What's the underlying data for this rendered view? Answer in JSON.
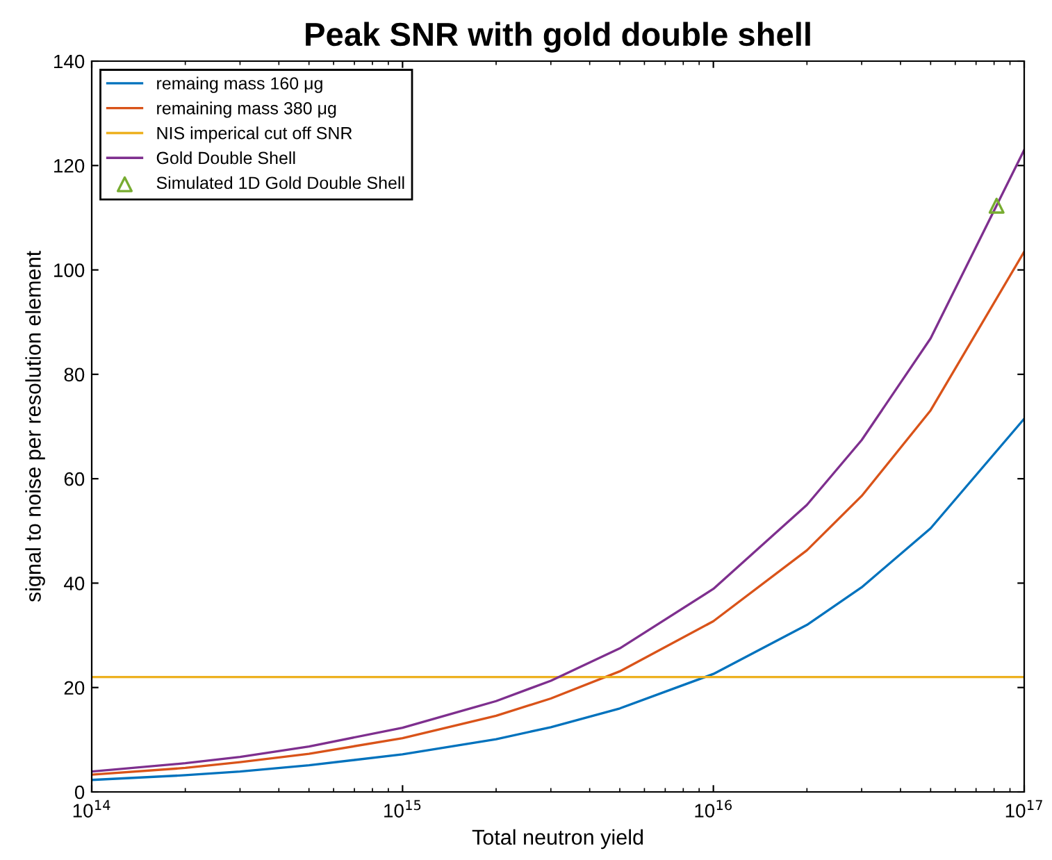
{
  "chart_data": {
    "type": "line",
    "title": "Peak SNR with gold double shell",
    "xlabel": "Total neutron yield",
    "ylabel": "signal to noise per resolution element",
    "log": "x",
    "xlim": [
      100000000000000.0,
      1e+17
    ],
    "ylim": [
      0,
      140
    ],
    "xticks": [
      {
        "value": 100000000000000.0,
        "label": "10$^{14}$"
      },
      {
        "value": 1000000000000000.0,
        "label": "10$^{15}$"
      },
      {
        "value": 1e+16,
        "label": "10$^{16}$"
      },
      {
        "value": 1e+17,
        "label": "10$^{17}$"
      }
    ],
    "yticks": [
      0,
      20,
      40,
      60,
      80,
      100,
      120,
      140
    ],
    "grid": false,
    "legend": "top left",
    "marker": "none",
    "x": [
      100000000000000.0,
      200000000000000.0,
      300000000000000.0,
      500000000000000.0,
      1000000000000000.0,
      2000000000000000.0,
      3000000000000000.0,
      5000000000000000.0,
      1e+16,
      2e+16,
      3e+16,
      5e+16,
      1e+17
    ],
    "series": [
      {
        "name": "remaing mass 160 μg",
        "color": "#0072bd",
        "values": [
          2.3,
          3.2,
          3.9,
          5.1,
          7.2,
          10.1,
          12.4,
          16.0,
          22.6,
          32.0,
          39.2,
          50.5,
          71.5
        ]
      },
      {
        "name": "remaining mass 380 μg",
        "color": "#d95319",
        "values": [
          3.3,
          4.6,
          5.7,
          7.3,
          10.3,
          14.6,
          17.9,
          23.1,
          32.7,
          46.3,
          56.7,
          73.1,
          103.5
        ]
      },
      {
        "name": "NIS imperical cut off SNR",
        "color": "#edb120",
        "x": [
          100000000000000.0,
          1e+17
        ],
        "values": [
          22,
          22
        ]
      },
      {
        "name": "Gold Double Shell",
        "color": "#7e2f8e",
        "values": [
          3.9,
          5.5,
          6.7,
          8.7,
          12.3,
          17.4,
          21.3,
          27.5,
          38.9,
          55.0,
          67.4,
          86.9,
          123
        ]
      },
      {
        "name": "Simulated 1D Gold Double Shell",
        "type": "scatter",
        "marker": "triangle",
        "color": "#77ac30",
        "x": [
          8.15e+16
        ],
        "values": [
          112.3
        ]
      }
    ]
  }
}
